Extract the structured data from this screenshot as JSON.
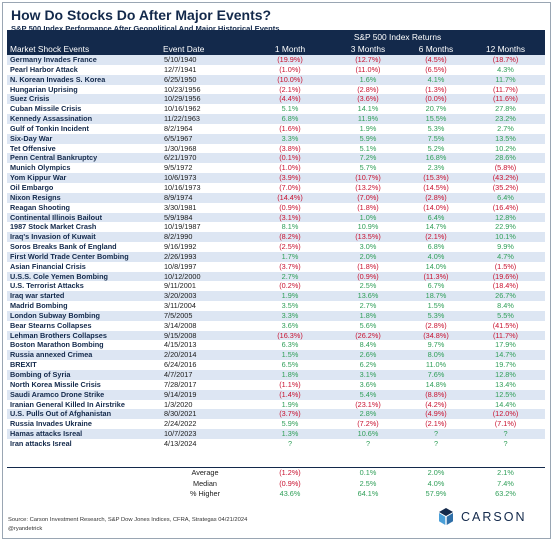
{
  "title": "How Do Stocks Do After Major Events?",
  "subtitle": "S&P 500 Index Performance After Geopolitical And Major Historical Events",
  "header": {
    "returns_group": "S&P 500 Index Returns",
    "col_event": "Market Shock Events",
    "col_date": "Event Date",
    "col_m1": "1 Month",
    "col_m3": "3 Months",
    "col_m6": "6 Months",
    "col_m12": "12 Months"
  },
  "rows": [
    {
      "event": "Germany Invades France",
      "date": "5/10/1940",
      "m1": "(19.9%)",
      "m3": "(12.7%)",
      "m6": "(4.5%)",
      "m12": "(18.7%)"
    },
    {
      "event": "Pearl Harbor Attack",
      "date": "12/7/1941",
      "m1": "(1.0%)",
      "m3": "(11.0%)",
      "m6": "(6.5%)",
      "m12": "4.3%"
    },
    {
      "event": "N. Korean Invades S. Korea",
      "date": "6/25/1950",
      "m1": "(10.0%)",
      "m3": "1.6%",
      "m6": "4.1%",
      "m12": "11.7%"
    },
    {
      "event": "Hungarian Uprising",
      "date": "10/23/1956",
      "m1": "(2.1%)",
      "m3": "(2.8%)",
      "m6": "(1.3%)",
      "m12": "(11.7%)"
    },
    {
      "event": "Suez Crisis",
      "date": "10/29/1956",
      "m1": "(4.4%)",
      "m3": "(3.6%)",
      "m6": "(0.0%)",
      "m12": "(11.6%)"
    },
    {
      "event": "Cuban Missile Crisis",
      "date": "10/16/1962",
      "m1": "5.1%",
      "m3": "14.1%",
      "m6": "20.7%",
      "m12": "27.8%"
    },
    {
      "event": "Kennedy Assassination",
      "date": "11/22/1963",
      "m1": "6.8%",
      "m3": "11.9%",
      "m6": "15.5%",
      "m12": "23.2%"
    },
    {
      "event": "Gulf of Tonkin Incident",
      "date": "8/2/1964",
      "m1": "(1.6%)",
      "m3": "1.9%",
      "m6": "5.3%",
      "m12": "2.7%"
    },
    {
      "event": "Six-Day War",
      "date": "6/5/1967",
      "m1": "3.3%",
      "m3": "5.9%",
      "m6": "7.5%",
      "m12": "13.5%"
    },
    {
      "event": "Tet Offensive",
      "date": "1/30/1968",
      "m1": "(3.8%)",
      "m3": "5.1%",
      "m6": "5.2%",
      "m12": "10.2%"
    },
    {
      "event": "Penn Central Bankruptcy",
      "date": "6/21/1970",
      "m1": "(0.1%)",
      "m3": "7.2%",
      "m6": "16.8%",
      "m12": "28.6%"
    },
    {
      "event": "Munich Olympics",
      "date": "9/5/1972",
      "m1": "(1.0%)",
      "m3": "5.7%",
      "m6": "2.3%",
      "m12": "(5.8%)"
    },
    {
      "event": "Yom Kippur War",
      "date": "10/6/1973",
      "m1": "(3.9%)",
      "m3": "(10.7%)",
      "m6": "(15.3%)",
      "m12": "(43.2%)"
    },
    {
      "event": "Oil Embargo",
      "date": "10/16/1973",
      "m1": "(7.0%)",
      "m3": "(13.2%)",
      "m6": "(14.5%)",
      "m12": "(35.2%)"
    },
    {
      "event": "Nixon Resigns",
      "date": "8/9/1974",
      "m1": "(14.4%)",
      "m3": "(7.0%)",
      "m6": "(2.8%)",
      "m12": "6.4%"
    },
    {
      "event": "Reagan Shooting",
      "date": "3/30/1981",
      "m1": "(0.9%)",
      "m3": "(1.8%)",
      "m6": "(14.0%)",
      "m12": "(16.4%)"
    },
    {
      "event": "Continental Illinois Bailout",
      "date": "5/9/1984",
      "m1": "(3.1%)",
      "m3": "1.0%",
      "m6": "6.4%",
      "m12": "12.8%"
    },
    {
      "event": "1987 Stock Market Crash",
      "date": "10/19/1987",
      "m1": "8.1%",
      "m3": "10.9%",
      "m6": "14.7%",
      "m12": "22.9%"
    },
    {
      "event": "Iraq's Invasion of Kuwait",
      "date": "8/2/1990",
      "m1": "(8.2%)",
      "m3": "(13.5%)",
      "m6": "(2.1%)",
      "m12": "10.1%"
    },
    {
      "event": "Soros Breaks Bank of England",
      "date": "9/16/1992",
      "m1": "(2.5%)",
      "m3": "3.0%",
      "m6": "6.8%",
      "m12": "9.9%"
    },
    {
      "event": "First World Trade Center Bombing",
      "date": "2/26/1993",
      "m1": "1.7%",
      "m3": "2.0%",
      "m6": "4.0%",
      "m12": "4.7%"
    },
    {
      "event": "Asian Financial Crisis",
      "date": "10/8/1997",
      "m1": "(3.7%)",
      "m3": "(1.8%)",
      "m6": "14.0%",
      "m12": "(1.5%)"
    },
    {
      "event": "U.S.S. Cole Yemen Bombing",
      "date": "10/12/2000",
      "m1": "2.7%",
      "m3": "(0.9%)",
      "m6": "(11.3%)",
      "m12": "(19.6%)"
    },
    {
      "event": "U.S. Terrorist Attacks",
      "date": "9/11/2001",
      "m1": "(0.2%)",
      "m3": "2.5%",
      "m6": "6.7%",
      "m12": "(18.4%)"
    },
    {
      "event": "Iraq war started",
      "date": "3/20/2003",
      "m1": "1.9%",
      "m3": "13.6%",
      "m6": "18.7%",
      "m12": "26.7%"
    },
    {
      "event": "Madrid Bombing",
      "date": "3/11/2004",
      "m1": "3.5%",
      "m3": "2.7%",
      "m6": "1.5%",
      "m12": "8.4%"
    },
    {
      "event": "London Subway Bombing",
      "date": "7/5/2005",
      "m1": "3.3%",
      "m3": "1.8%",
      "m6": "5.3%",
      "m12": "5.5%"
    },
    {
      "event": "Bear Stearns Collapses",
      "date": "3/14/2008",
      "m1": "3.6%",
      "m3": "5.6%",
      "m6": "(2.8%)",
      "m12": "(41.5%)"
    },
    {
      "event": "Lehman Brothers Collapses",
      "date": "9/15/2008",
      "m1": "(16.3%)",
      "m3": "(26.2%)",
      "m6": "(34.8%)",
      "m12": "(11.7%)"
    },
    {
      "event": "Boston Marathon Bombing",
      "date": "4/15/2013",
      "m1": "6.3%",
      "m3": "8.4%",
      "m6": "9.7%",
      "m12": "17.9%"
    },
    {
      "event": "Russia annexed Crimea",
      "date": "2/20/2014",
      "m1": "1.5%",
      "m3": "2.6%",
      "m6": "8.0%",
      "m12": "14.7%"
    },
    {
      "event": "BREXIT",
      "date": "6/24/2016",
      "m1": "6.5%",
      "m3": "6.2%",
      "m6": "11.0%",
      "m12": "19.7%"
    },
    {
      "event": "Bombing of Syria",
      "date": "4/7/2017",
      "m1": "1.8%",
      "m3": "3.1%",
      "m6": "7.6%",
      "m12": "12.8%"
    },
    {
      "event": "North Korea Missile Crisis",
      "date": "7/28/2017",
      "m1": "(1.1%)",
      "m3": "3.6%",
      "m6": "14.8%",
      "m12": "13.4%"
    },
    {
      "event": "Saudi Aramco Drone Strike",
      "date": "9/14/2019",
      "m1": "(1.4%)",
      "m3": "5.4%",
      "m6": "(8.8%)",
      "m12": "12.5%"
    },
    {
      "event": "Iranian General Killed In Airstrike",
      "date": "1/3/2020",
      "m1": "1.9%",
      "m3": "(23.1%)",
      "m6": "(4.2%)",
      "m12": "14.4%"
    },
    {
      "event": "U.S. Pulls Out of Afghanistan",
      "date": "8/30/2021",
      "m1": "(3.7%)",
      "m3": "2.8%",
      "m6": "(4.9%)",
      "m12": "(12.0%)"
    },
    {
      "event": "Russia Invades Ukraine",
      "date": "2/24/2022",
      "m1": "5.9%",
      "m3": "(7.2%)",
      "m6": "(2.1%)",
      "m12": "(7.1%)"
    },
    {
      "event": "Hamas attacks Isreal",
      "date": "10/7/2023",
      "m1": "1.3%",
      "m3": "10.6%",
      "m6": "?",
      "m12": "?"
    },
    {
      "event": "Iran attacks Isreal",
      "date": "4/13/2024",
      "m1": "?",
      "m3": "?",
      "m6": "?",
      "m12": "?"
    }
  ],
  "summary": [
    {
      "label": "Average",
      "m1": "(1.2%)",
      "m3": "0.1%",
      "m6": "2.0%",
      "m12": "2.1%"
    },
    {
      "label": "Median",
      "m1": "(0.9%)",
      "m3": "2.5%",
      "m6": "4.0%",
      "m12": "7.4%"
    },
    {
      "label": "% Higher",
      "m1": "43.6%",
      "m3": "64.1%",
      "m6": "57.9%",
      "m12": "63.2%"
    }
  ],
  "footer": {
    "source": "Source: Carson Investment Research, S&P Dow Jones Indices, CFRA, Strategas 04/21/2024",
    "handle": "@ryandetrick",
    "logo_text": "CARSON"
  },
  "colors": {
    "navy": "#13294b",
    "negative": "#c8102e",
    "positive": "#2e9e57",
    "stripe": "#dde6f3"
  },
  "icons": [
    "carson-logo-icon"
  ]
}
